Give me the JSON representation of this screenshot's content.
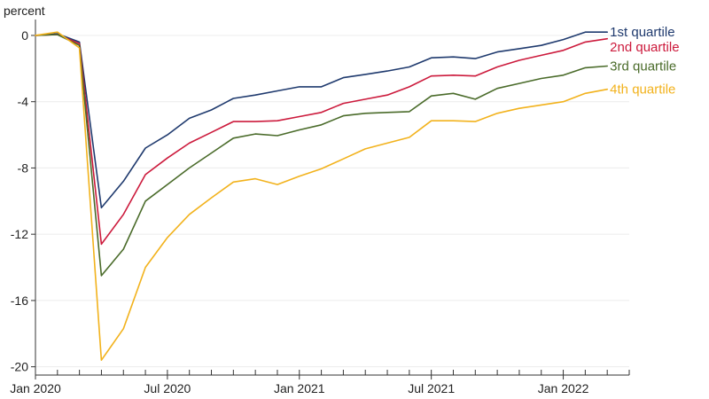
{
  "chart_data": {
    "type": "line",
    "title": "",
    "xlabel": "",
    "ylabel": "percent",
    "ylim": [
      -20.5,
      0.8
    ],
    "yticks": [
      0,
      -4,
      -8,
      -12,
      -16,
      -20
    ],
    "y_tick_labels": [
      "0",
      "-4",
      "-8",
      "-12",
      "-16",
      "-20"
    ],
    "xlim": [
      "2020-01",
      "2022-04"
    ],
    "x_tick_labels": [
      {
        "date": "2020-01",
        "label": "Jan 2020"
      },
      {
        "date": "2020-07",
        "label": "Jul 2020"
      },
      {
        "date": "2021-01",
        "label": "Jan 2021"
      },
      {
        "date": "2021-07",
        "label": "Jul 2021"
      },
      {
        "date": "2022-01",
        "label": "Jan 2022"
      }
    ],
    "x": [
      "2020-01",
      "2020-02",
      "2020-03",
      "2020-04",
      "2020-05",
      "2020-06",
      "2020-07",
      "2020-08",
      "2020-09",
      "2020-10",
      "2020-11",
      "2020-12",
      "2021-01",
      "2021-02",
      "2021-03",
      "2021-04",
      "2021-05",
      "2021-06",
      "2021-07",
      "2021-08",
      "2021-09",
      "2021-10",
      "2021-11",
      "2021-12",
      "2022-01",
      "2022-02",
      "2022-03"
    ],
    "grid": "horizontal",
    "legend": "direct labels at line ends",
    "series": [
      {
        "name": "1st quartile",
        "color": "#1f3a6e",
        "values": [
          0.0,
          0.1,
          -0.4,
          -10.4,
          -8.8,
          -6.8,
          -6.0,
          -5.0,
          -4.5,
          -3.8,
          -3.6,
          -3.35,
          -3.1,
          -3.1,
          -2.55,
          -2.35,
          -2.15,
          -1.9,
          -1.35,
          -1.3,
          -1.4,
          -1.0,
          -0.8,
          -0.6,
          -0.25,
          0.2,
          0.2
        ]
      },
      {
        "name": "2nd quartile",
        "color": "#cc1a3c",
        "values": [
          0.0,
          0.05,
          -0.5,
          -12.6,
          -10.8,
          -8.4,
          -7.4,
          -6.5,
          -5.85,
          -5.2,
          -5.2,
          -5.15,
          -4.9,
          -4.65,
          -4.1,
          -3.85,
          -3.6,
          -3.1,
          -2.45,
          -2.4,
          -2.45,
          -1.9,
          -1.5,
          -1.2,
          -0.9,
          -0.4,
          -0.2
        ]
      },
      {
        "name": "3rd quartile",
        "color": "#4a6b2a",
        "values": [
          0.0,
          0.05,
          -0.6,
          -14.5,
          -12.9,
          -10.0,
          -9.0,
          -8.0,
          -7.1,
          -6.2,
          -5.95,
          -6.05,
          -5.7,
          -5.4,
          -4.85,
          -4.7,
          -4.65,
          -4.6,
          -3.65,
          -3.5,
          -3.85,
          -3.2,
          -2.9,
          -2.6,
          -2.4,
          -1.95,
          -1.85
        ]
      },
      {
        "name": "4th quartile",
        "color": "#f2b21c",
        "values": [
          0.0,
          0.2,
          -0.75,
          -19.6,
          -17.7,
          -14.0,
          -12.2,
          -10.8,
          -9.8,
          -8.85,
          -8.65,
          -9.0,
          -8.5,
          -8.05,
          -7.45,
          -6.85,
          -6.5,
          -6.15,
          -5.15,
          -5.15,
          -5.2,
          -4.7,
          -4.4,
          -4.2,
          -4.0,
          -3.5,
          -3.25
        ]
      }
    ]
  }
}
